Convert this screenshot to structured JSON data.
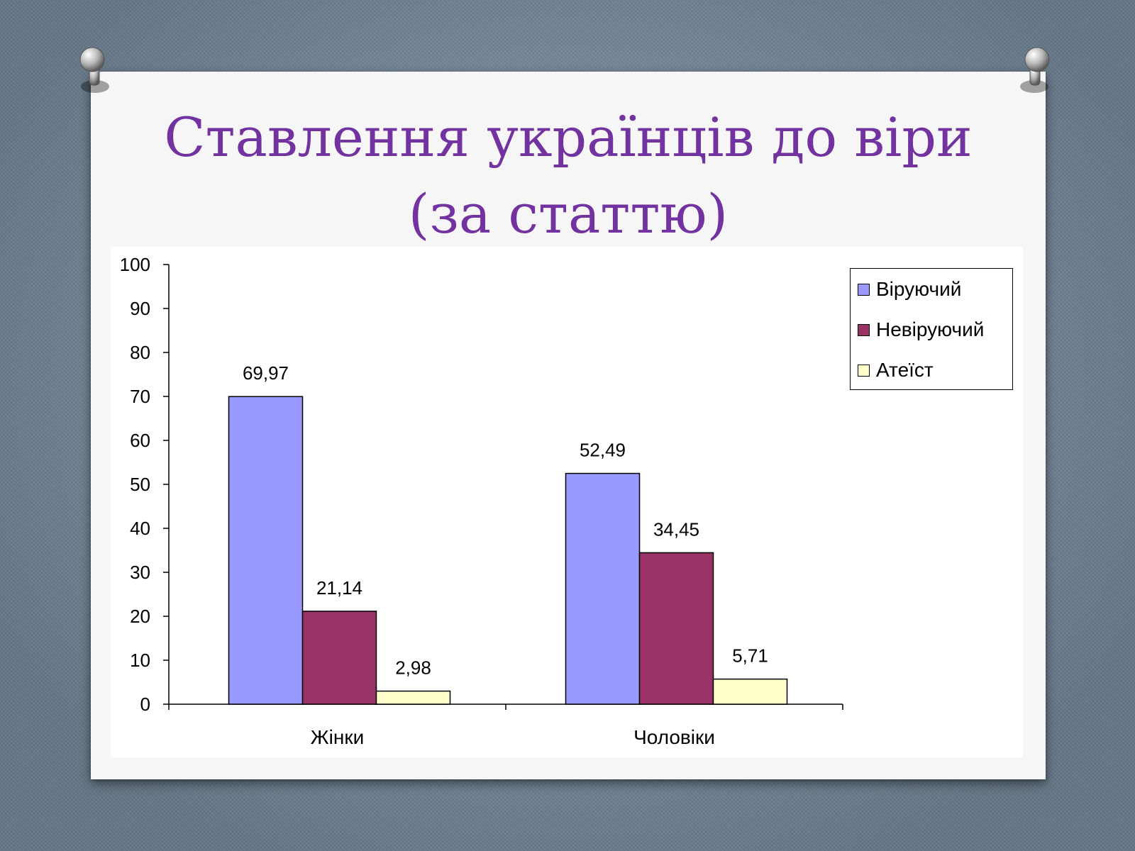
{
  "slide": {
    "title_line1": "Ставлення українців до віри",
    "title_line2": "(за статтю)",
    "title_color": "#7232a0"
  },
  "chart_data": {
    "type": "bar",
    "categories": [
      "Жінки",
      "Чоловіки"
    ],
    "series": [
      {
        "name": "Віруючий",
        "values": [
          69.97,
          52.49
        ],
        "labels": [
          "69,97",
          "52,49"
        ],
        "color": "#9999ff"
      },
      {
        "name": "Невіруючий",
        "values": [
          21.14,
          34.45
        ],
        "labels": [
          "21,14",
          "34,45"
        ],
        "color": "#993366"
      },
      {
        "name": "Атеїст",
        "values": [
          2.98,
          5.71
        ],
        "labels": [
          "2,98",
          "5,71"
        ],
        "color": "#ffffcc"
      }
    ],
    "ylim": [
      0,
      100
    ],
    "yticks": [
      "0",
      "10",
      "20",
      "30",
      "40",
      "50",
      "60",
      "70",
      "80",
      "90",
      "100"
    ],
    "grid": false,
    "legend_position": "top-right"
  }
}
